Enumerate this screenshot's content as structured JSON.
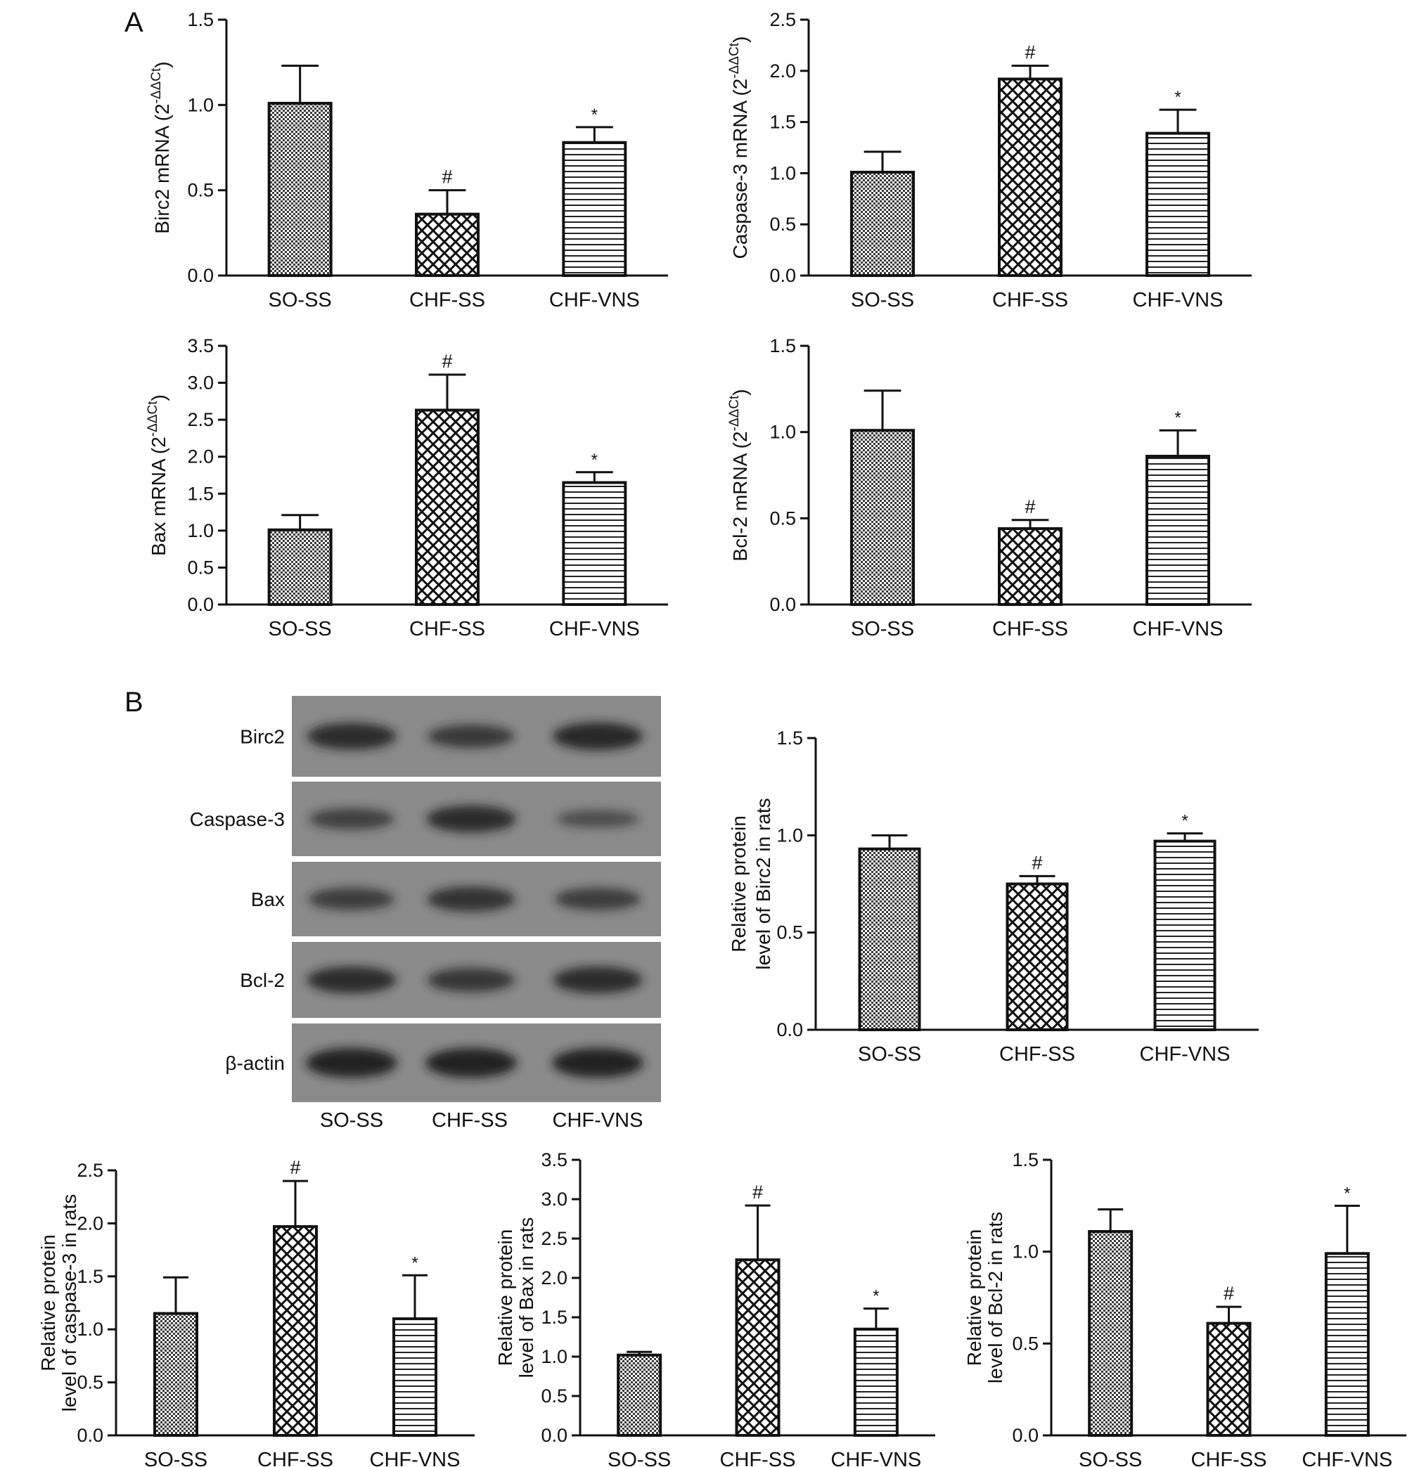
{
  "panel_labels": [
    "A",
    "B"
  ],
  "colors": {
    "bar_fill": "#ffffff",
    "bar_stroke": "#111111",
    "pattern_ink": "#222222",
    "blot_background": "#8a8a8a",
    "blot_band": "#1a1a1a"
  },
  "blot": {
    "row_labels": [
      "Birc2",
      "Caspase-3",
      "Bax",
      "Bcl-2",
      "β-actin"
    ],
    "lane_labels": [
      "SO-SS",
      "CHF-SS",
      "CHF-VNS"
    ],
    "band_intensity": [
      [
        0.85,
        0.65,
        0.9
      ],
      [
        0.55,
        0.85,
        0.35
      ],
      [
        0.6,
        0.75,
        0.6
      ],
      [
        0.85,
        0.7,
        0.85
      ],
      [
        1.0,
        1.0,
        1.0
      ]
    ]
  },
  "patterns": [
    "dots",
    "crosshatch",
    "hlines"
  ],
  "chart_data": [
    {
      "type": "bar",
      "panel": "A",
      "categories": [
        "SO-SS",
        "CHF-SS",
        "CHF-VNS"
      ],
      "values": [
        1.01,
        0.36,
        0.78
      ],
      "errors": [
        0.22,
        0.14,
        0.09
      ],
      "markers": [
        "",
        "#",
        "*"
      ],
      "ylabel": "Birc2 mRNA (2",
      "ylabel_sup": "-ΔΔCt",
      "ylabel_end": ")",
      "ylim": [
        0,
        1.5
      ],
      "yticks": [
        "0.0",
        "0.5",
        "1.0",
        "1.5"
      ]
    },
    {
      "type": "bar",
      "panel": "A",
      "categories": [
        "SO-SS",
        "CHF-SS",
        "CHF-VNS"
      ],
      "values": [
        1.01,
        1.92,
        1.39
      ],
      "errors": [
        0.2,
        0.13,
        0.23
      ],
      "markers": [
        "",
        "#",
        "*"
      ],
      "ylabel": "Caspase-3 mRNA (2",
      "ylabel_sup": "-ΔΔCt",
      "ylabel_end": ")",
      "ylim": [
        0,
        2.5
      ],
      "yticks": [
        "0.0",
        "0.5",
        "1.0",
        "1.5",
        "2.0",
        "2.5"
      ]
    },
    {
      "type": "bar",
      "panel": "A",
      "categories": [
        "SO-SS",
        "CHF-SS",
        "CHF-VNS"
      ],
      "values": [
        1.01,
        2.63,
        1.65
      ],
      "errors": [
        0.2,
        0.48,
        0.14
      ],
      "markers": [
        "",
        "#",
        "*"
      ],
      "ylabel": "Bax mRNA (2",
      "ylabel_sup": "-ΔΔCt",
      "ylabel_end": ")",
      "ylim": [
        0,
        3.5
      ],
      "yticks": [
        "0.0",
        "0.5",
        "1.0",
        "1.5",
        "2.0",
        "2.5",
        "3.0",
        "3.5"
      ]
    },
    {
      "type": "bar",
      "panel": "A",
      "categories": [
        "SO-SS",
        "CHF-SS",
        "CHF-VNS"
      ],
      "values": [
        1.01,
        0.44,
        0.86
      ],
      "errors": [
        0.23,
        0.05,
        0.15
      ],
      "markers": [
        "",
        "#",
        "*"
      ],
      "ylabel": "Bcl-2 mRNA (2",
      "ylabel_sup": "-ΔΔCt",
      "ylabel_end": ")",
      "ylim": [
        0,
        1.5
      ],
      "yticks": [
        "0.0",
        "0.5",
        "1.0",
        "1.5"
      ]
    },
    {
      "type": "bar",
      "panel": "B",
      "categories": [
        "SO-SS",
        "CHF-SS",
        "CHF-VNS"
      ],
      "values": [
        0.93,
        0.75,
        0.97
      ],
      "errors": [
        0.07,
        0.04,
        0.04
      ],
      "markers": [
        "",
        "#",
        "*"
      ],
      "ylabel_lines": [
        "Relative protein",
        "level of Birc2 in rats"
      ],
      "ylim": [
        0,
        1.5
      ],
      "yticks": [
        "0.0",
        "0.5",
        "1.0",
        "1.5"
      ]
    },
    {
      "type": "bar",
      "panel": "B",
      "categories": [
        "SO-SS",
        "CHF-SS",
        "CHF-VNS"
      ],
      "values": [
        1.15,
        1.97,
        1.1
      ],
      "errors": [
        0.34,
        0.43,
        0.41
      ],
      "markers": [
        "",
        "#",
        "*"
      ],
      "ylabel_lines": [
        "Relative protein",
        "level of caspase-3 in rats"
      ],
      "ylim": [
        0,
        2.5
      ],
      "yticks": [
        "0.0",
        "0.5",
        "1.0",
        "1.5",
        "2.0",
        "2.5"
      ]
    },
    {
      "type": "bar",
      "panel": "B",
      "categories": [
        "SO-SS",
        "CHF-SS",
        "CHF-VNS"
      ],
      "values": [
        1.02,
        2.23,
        1.35
      ],
      "errors": [
        0.04,
        0.69,
        0.26
      ],
      "markers": [
        "",
        "#",
        "*"
      ],
      "ylabel_lines": [
        "Relative protein",
        "level of Bax in rats"
      ],
      "ylim": [
        0,
        3.5
      ],
      "yticks": [
        "0.0",
        "0.5",
        "1.0",
        "1.5",
        "2.0",
        "2.5",
        "3.0",
        "3.5"
      ]
    },
    {
      "type": "bar",
      "panel": "B",
      "categories": [
        "SO-SS",
        "CHF-SS",
        "CHF-VNS"
      ],
      "values": [
        1.11,
        0.61,
        0.99
      ],
      "errors": [
        0.12,
        0.09,
        0.26
      ],
      "markers": [
        "",
        "#",
        "*"
      ],
      "ylabel_lines": [
        "Relative protein",
        "level of Bcl-2 in rats"
      ],
      "ylim": [
        0,
        1.5
      ],
      "yticks": [
        "0.0",
        "0.5",
        "1.0",
        "1.5"
      ]
    }
  ]
}
